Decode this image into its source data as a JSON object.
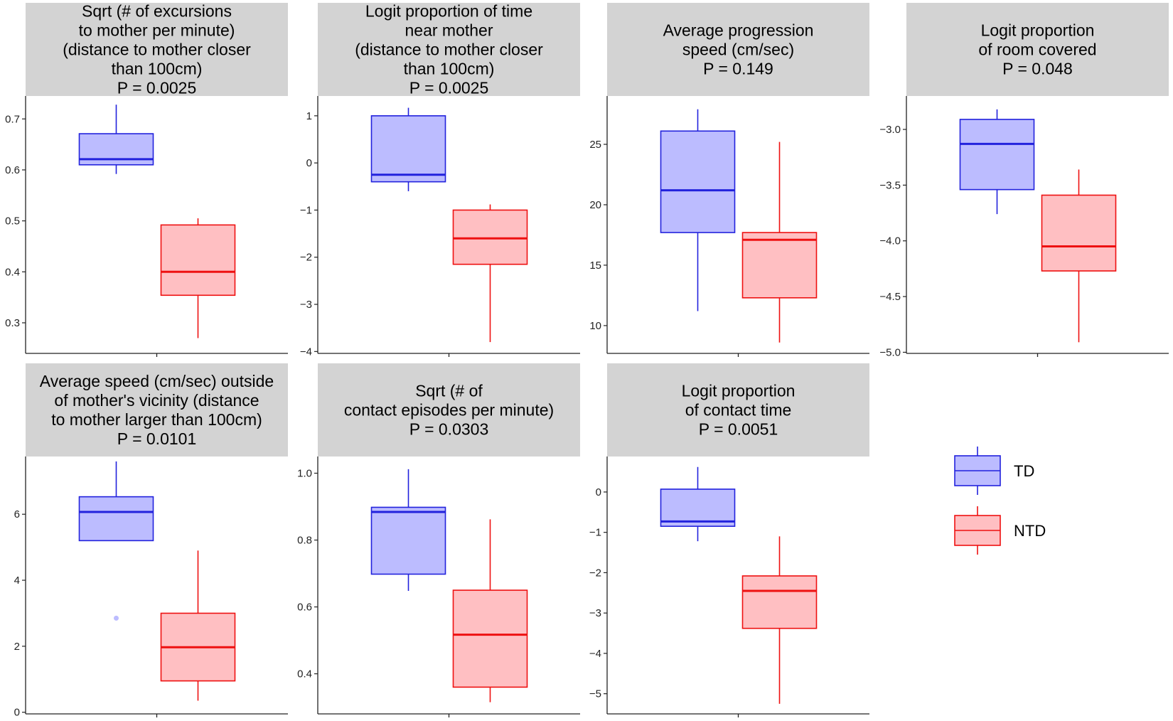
{
  "chart_data": {
    "type": "boxplot",
    "layout": "facet-grid",
    "groups": [
      {
        "name": "TD",
        "line_color": "#2222dd",
        "fill_color": "#bcbcff"
      },
      {
        "name": "NTD",
        "line_color": "#ee1111",
        "fill_color": "#ffbfc2"
      }
    ],
    "panels": [
      {
        "title_lines": [
          "Sqrt (# of excursions",
          "to mother per minute)",
          "(distance to mother closer",
          "than 100cm)",
          "P = 0.0025"
        ],
        "ylim": [
          0.24,
          0.745
        ],
        "yticks": [
          "0.3",
          "0.4",
          "0.5",
          "0.6",
          "0.7"
        ],
        "boxes": [
          {
            "group": "TD",
            "min": 0.592,
            "q1": 0.61,
            "median": 0.621,
            "q3": 0.671,
            "max": 0.728,
            "outliers": []
          },
          {
            "group": "NTD",
            "min": 0.27,
            "q1": 0.354,
            "median": 0.4,
            "q3": 0.492,
            "max": 0.505,
            "outliers": []
          }
        ]
      },
      {
        "title_lines": [
          "Logit proportion of time",
          "near mother",
          "(distance to mother closer",
          "than 100cm)",
          "P = 0.0025"
        ],
        "ylim": [
          -4.04,
          1.42
        ],
        "yticks": [
          "−4",
          "−3",
          "−2",
          "−1",
          "0",
          "1"
        ],
        "boxes": [
          {
            "group": "TD",
            "min": -0.6,
            "q1": -0.4,
            "median": -0.25,
            "q3": 1.0,
            "max": 1.17,
            "outliers": []
          },
          {
            "group": "NTD",
            "min": -3.8,
            "q1": -2.15,
            "median": -1.6,
            "q3": -1.0,
            "max": -0.88,
            "outliers": []
          }
        ]
      },
      {
        "title_lines": [
          "Average progression",
          "speed (cm/sec)",
          "P = 0.149"
        ],
        "ylim": [
          7.7,
          29.0
        ],
        "yticks": [
          "10",
          "15",
          "20",
          "25"
        ],
        "boxes": [
          {
            "group": "TD",
            "min": 11.2,
            "q1": 17.7,
            "median": 21.2,
            "q3": 26.1,
            "max": 27.9,
            "outliers": []
          },
          {
            "group": "NTD",
            "min": 8.6,
            "q1": 12.3,
            "median": 17.1,
            "q3": 17.7,
            "max": 25.2,
            "outliers": []
          }
        ]
      },
      {
        "title_lines": [
          "Logit proportion",
          "of room covered",
          "P = 0.048"
        ],
        "ylim": [
          -5.01,
          -2.7
        ],
        "yticks": [
          "−5.0",
          "−4.5",
          "−4.0",
          "−3.5",
          "−3.0"
        ],
        "boxes": [
          {
            "group": "TD",
            "min": -3.76,
            "q1": -3.54,
            "median": -3.13,
            "q3": -2.91,
            "max": -2.82,
            "outliers": []
          },
          {
            "group": "NTD",
            "min": -4.91,
            "q1": -4.27,
            "median": -4.05,
            "q3": -3.59,
            "max": -3.36,
            "outliers": []
          }
        ]
      },
      {
        "title_lines": [
          "Average speed (cm/sec) outside",
          "of mother's vicinity (distance",
          "to mother larger than 100cm)",
          "P = 0.0101"
        ],
        "ylim": [
          -0.05,
          7.75
        ],
        "yticks": [
          "0",
          "2",
          "4",
          "6"
        ],
        "boxes": [
          {
            "group": "TD",
            "min": 5.2,
            "q1": 5.2,
            "median": 6.07,
            "q3": 6.53,
            "max": 7.6,
            "outliers": [
              2.85
            ]
          },
          {
            "group": "NTD",
            "min": 0.35,
            "q1": 0.95,
            "median": 1.97,
            "q3": 3.0,
            "max": 4.9,
            "outliers": []
          }
        ]
      },
      {
        "title_lines": [
          "Sqrt (# of",
          "contact episodes per minute)",
          "P = 0.0303"
        ],
        "ylim": [
          0.28,
          1.05
        ],
        "yticks": [
          "0.4",
          "0.6",
          "0.8",
          "1.0"
        ],
        "boxes": [
          {
            "group": "TD",
            "min": 0.648,
            "q1": 0.698,
            "median": 0.884,
            "q3": 0.898,
            "max": 1.012,
            "outliers": []
          },
          {
            "group": "NTD",
            "min": 0.315,
            "q1": 0.36,
            "median": 0.517,
            "q3": 0.65,
            "max": 0.862,
            "outliers": []
          }
        ]
      },
      {
        "title_lines": [
          "Logit proportion",
          "of contact time",
          "P = 0.0051"
        ],
        "ylim": [
          -5.5,
          0.88
        ],
        "yticks": [
          "−5",
          "−4",
          "−3",
          "−2",
          "−1",
          "0"
        ],
        "boxes": [
          {
            "group": "TD",
            "min": -1.22,
            "q1": -0.85,
            "median": -0.73,
            "q3": 0.07,
            "max": 0.62,
            "outliers": []
          },
          {
            "group": "NTD",
            "min": -5.25,
            "q1": -3.38,
            "median": -2.45,
            "q3": -2.08,
            "max": -1.1,
            "outliers": []
          }
        ]
      }
    ],
    "legend": {
      "position": "bottom-right",
      "entries": [
        "TD",
        "NTD"
      ]
    },
    "xlabel": "",
    "ylabel": "",
    "grid": false
  }
}
